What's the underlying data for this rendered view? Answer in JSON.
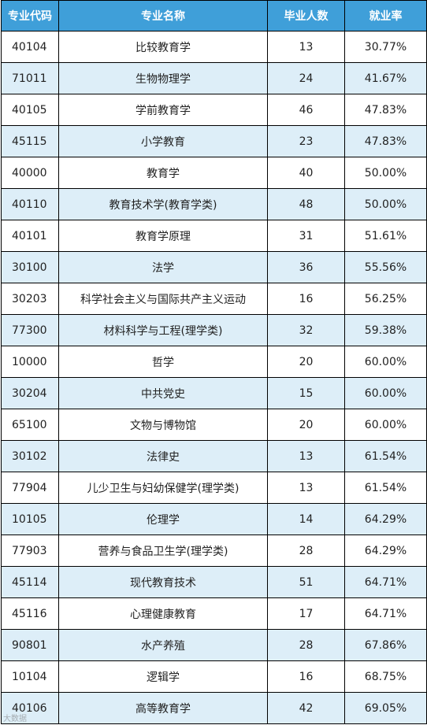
{
  "table": {
    "headers": [
      "专业代码",
      "专业名称",
      "毕业人数",
      "就业率"
    ],
    "rows": [
      [
        "40104",
        "比较教育学",
        "13",
        "30.77%"
      ],
      [
        "71011",
        "生物物理学",
        "24",
        "41.67%"
      ],
      [
        "40105",
        "学前教育学",
        "46",
        "47.83%"
      ],
      [
        "45115",
        "小学教育",
        "23",
        "47.83%"
      ],
      [
        "40000",
        "教育学",
        "40",
        "50.00%"
      ],
      [
        "40110",
        "教育技术学(教育学类)",
        "48",
        "50.00%"
      ],
      [
        "40101",
        "教育学原理",
        "31",
        "51.61%"
      ],
      [
        "30100",
        "法学",
        "36",
        "55.56%"
      ],
      [
        "30203",
        "科学社会主义与国际共产主义运动",
        "16",
        "56.25%"
      ],
      [
        "77300",
        "材料科学与工程(理学类)",
        "32",
        "59.38%"
      ],
      [
        "10000",
        "哲学",
        "20",
        "60.00%"
      ],
      [
        "30204",
        "中共党史",
        "15",
        "60.00%"
      ],
      [
        "65100",
        "文物与博物馆",
        "20",
        "60.00%"
      ],
      [
        "30102",
        "法律史",
        "13",
        "61.54%"
      ],
      [
        "77904",
        "儿少卫生与妇幼保健学(理学类)",
        "13",
        "61.54%"
      ],
      [
        "10105",
        "伦理学",
        "14",
        "64.29%"
      ],
      [
        "77903",
        "营养与食品卫生学(理学类)",
        "28",
        "64.29%"
      ],
      [
        "45114",
        "现代教育技术",
        "51",
        "64.71%"
      ],
      [
        "45116",
        "心理健康教育",
        "17",
        "64.71%"
      ],
      [
        "90801",
        "水产养殖",
        "28",
        "67.86%"
      ],
      [
        "10104",
        "逻辑学",
        "16",
        "68.75%"
      ],
      [
        "40106",
        "高等教育学",
        "42",
        "69.05%"
      ]
    ]
  },
  "colors": {
    "header_bg": "#3f9fd9",
    "row_alt_bg": "#ddeef8",
    "row_bg": "#ffffff"
  },
  "watermark": "大数据"
}
